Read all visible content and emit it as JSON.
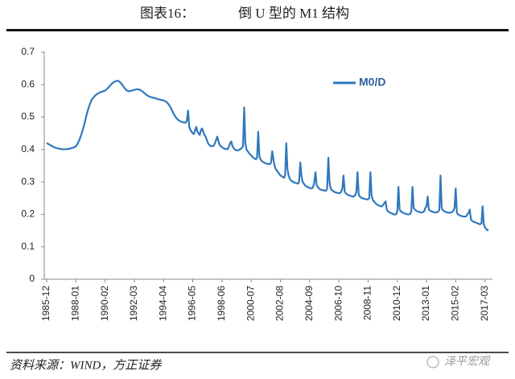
{
  "chart_data": {
    "type": "line",
    "figure_label": "图表16：",
    "title": "倒 U 型的 M1 结构",
    "source": "资料来源：WIND，方正证券",
    "watermark": "泽平宏观",
    "ylim": [
      0,
      0.7
    ],
    "yticks": [
      0,
      0.1,
      0.2,
      0.3,
      0.4,
      0.5,
      0.6,
      0.7
    ],
    "grid": false,
    "legend": "top-right",
    "categories": [
      "1985-12",
      null,
      null,
      null,
      null,
      null,
      null,
      null,
      null,
      null,
      null,
      null,
      null,
      null,
      null,
      null,
      null,
      null,
      null,
      null,
      null,
      null,
      null,
      null,
      null,
      "1988-01",
      null,
      null,
      null,
      null,
      null,
      null,
      null,
      null,
      null,
      null,
      null,
      null,
      null,
      null,
      null,
      null,
      null,
      null,
      null,
      null,
      null,
      null,
      null,
      null,
      "1990-02",
      null,
      null,
      null,
      null,
      null,
      null,
      null,
      null,
      null,
      null,
      null,
      null,
      null,
      null,
      null,
      null,
      null,
      null,
      null,
      null,
      null,
      null,
      null,
      null,
      "1992-03",
      null,
      null,
      null,
      null,
      null,
      null,
      null,
      null,
      null,
      null,
      null,
      null,
      null,
      null,
      null,
      null,
      null,
      null,
      null,
      null,
      null,
      null,
      null,
      null,
      "1994-04",
      null,
      null,
      null,
      null,
      null,
      null,
      null,
      null,
      null,
      null,
      null,
      null,
      null,
      null,
      null,
      null,
      null,
      null,
      null,
      null,
      null,
      null,
      null,
      null,
      "1996-05",
      null,
      null,
      null,
      null,
      null,
      null,
      null,
      null,
      null,
      null,
      null,
      null,
      null,
      null,
      null,
      null,
      null,
      null,
      null,
      null,
      null,
      null,
      null,
      null,
      "1998-06",
      null,
      null,
      null,
      null,
      null,
      null,
      null,
      null,
      null,
      null,
      null,
      null,
      null,
      null,
      null,
      null,
      null,
      null,
      null,
      null,
      null,
      null,
      null,
      null,
      "2000-07",
      null,
      null,
      null,
      null,
      null,
      null,
      null,
      null,
      null,
      null,
      null,
      null,
      null,
      null,
      null,
      null,
      null,
      null,
      null,
      null,
      null,
      null,
      null,
      null,
      "2002-08",
      null,
      null,
      null,
      null,
      null,
      null,
      null,
      null,
      null,
      null,
      null,
      null,
      null,
      null,
      null,
      null,
      null,
      null,
      null,
      null,
      null,
      null,
      null,
      null,
      "2004-09",
      null,
      null,
      null,
      null,
      null,
      null,
      null,
      null,
      null,
      null,
      null,
      null,
      null,
      null,
      null,
      null,
      null,
      null,
      null,
      null,
      null,
      null,
      null,
      null,
      "2006-10",
      null,
      null,
      null,
      null,
      null,
      null,
      null,
      null,
      null,
      null,
      null,
      null,
      null,
      null,
      null,
      null,
      null,
      null,
      null,
      null,
      null,
      null,
      null,
      null,
      "2008-11",
      null,
      null,
      null,
      null,
      null,
      null,
      null,
      null,
      null,
      null,
      null,
      null,
      null,
      null,
      null,
      null,
      null,
      null,
      null,
      null,
      null,
      null,
      null,
      null,
      "2010-12",
      null,
      null,
      null,
      null,
      null,
      null,
      null,
      null,
      null,
      null,
      null,
      null,
      null,
      null,
      null,
      null,
      null,
      null,
      null,
      null,
      null,
      null,
      null,
      null,
      "2013-01",
      null,
      null,
      null,
      null,
      null,
      null,
      null,
      null,
      null,
      null,
      null,
      null,
      null,
      null,
      null,
      null,
      null,
      null,
      null,
      null,
      null,
      null,
      null,
      null,
      "2015-02",
      null,
      null,
      null,
      null,
      null,
      null,
      null,
      null,
      null,
      null,
      null,
      null,
      null,
      null,
      null,
      null,
      null,
      null,
      null,
      null,
      null,
      null,
      null,
      null,
      "2017-03",
      null,
      null,
      null
    ],
    "series": [
      {
        "name": "M0/D",
        "color": "#2f78bd",
        "values": [
          0.42,
          0.418,
          0.416,
          0.414,
          0.412,
          0.41,
          0.408,
          0.406,
          0.405,
          0.404,
          0.403,
          0.402,
          0.402,
          0.401,
          0.401,
          0.401,
          0.401,
          0.401,
          0.402,
          0.402,
          0.403,
          0.404,
          0.405,
          0.406,
          0.408,
          0.41,
          0.415,
          0.422,
          0.43,
          0.44,
          0.45,
          0.462,
          0.475,
          0.49,
          0.505,
          0.518,
          0.53,
          0.54,
          0.55,
          0.556,
          0.56,
          0.565,
          0.568,
          0.571,
          0.573,
          0.575,
          0.577,
          0.578,
          0.58,
          0.58,
          0.582,
          0.585,
          0.588,
          0.592,
          0.596,
          0.6,
          0.604,
          0.607,
          0.609,
          0.611,
          0.612,
          0.612,
          0.61,
          0.607,
          0.603,
          0.598,
          0.593,
          0.588,
          0.584,
          0.581,
          0.58,
          0.58,
          0.581,
          0.582,
          0.583,
          0.584,
          0.585,
          0.586,
          0.586,
          0.585,
          0.584,
          0.582,
          0.579,
          0.576,
          0.573,
          0.57,
          0.567,
          0.565,
          0.563,
          0.562,
          0.561,
          0.56,
          0.559,
          0.558,
          0.557,
          0.556,
          0.555,
          0.554,
          0.553,
          0.552,
          0.551,
          0.55,
          0.548,
          0.545,
          0.541,
          0.536,
          0.53,
          0.523,
          0.515,
          0.508,
          0.502,
          0.497,
          0.493,
          0.49,
          0.488,
          0.486,
          0.485,
          0.484,
          0.483,
          0.483,
          0.49,
          0.52,
          0.47,
          0.46,
          0.455,
          0.45,
          0.448,
          0.46,
          0.47,
          0.455,
          0.45,
          0.445,
          0.46,
          0.465,
          0.455,
          0.445,
          0.44,
          0.43,
          0.42,
          0.415,
          0.412,
          0.41,
          0.41,
          0.412,
          0.42,
          0.43,
          0.44,
          0.425,
          0.415,
          0.41,
          0.408,
          0.405,
          0.403,
          0.402,
          0.401,
          0.402,
          0.41,
          0.42,
          0.425,
          0.41,
          0.405,
          0.4,
          0.398,
          0.397,
          0.398,
          0.4,
          0.402,
          0.405,
          0.41,
          0.53,
          0.42,
          0.4,
          0.395,
          0.39,
          0.385,
          0.382,
          0.378,
          0.375,
          0.372,
          0.37,
          0.375,
          0.455,
          0.38,
          0.37,
          0.365,
          0.362,
          0.36,
          0.358,
          0.357,
          0.356,
          0.355,
          0.355,
          0.36,
          0.395,
          0.37,
          0.35,
          0.34,
          0.335,
          0.33,
          0.325,
          0.32,
          0.318,
          0.315,
          0.313,
          0.32,
          0.42,
          0.34,
          0.32,
          0.31,
          0.305,
          0.302,
          0.3,
          0.298,
          0.297,
          0.296,
          0.295,
          0.3,
          0.36,
          0.32,
          0.3,
          0.295,
          0.29,
          0.287,
          0.285,
          0.283,
          0.282,
          0.28,
          0.28,
          0.285,
          0.3,
          0.33,
          0.29,
          0.285,
          0.28,
          0.277,
          0.276,
          0.275,
          0.274,
          0.273,
          0.273,
          0.28,
          0.375,
          0.3,
          0.28,
          0.275,
          0.272,
          0.27,
          0.268,
          0.267,
          0.266,
          0.265,
          0.266,
          0.27,
          0.28,
          0.32,
          0.27,
          0.265,
          0.262,
          0.26,
          0.258,
          0.257,
          0.256,
          0.255,
          0.256,
          0.26,
          0.27,
          0.33,
          0.26,
          0.255,
          0.252,
          0.25,
          0.249,
          0.248,
          0.247,
          0.246,
          0.247,
          0.25,
          0.33,
          0.26,
          0.245,
          0.24,
          0.236,
          0.232,
          0.23,
          0.228,
          0.226,
          0.225,
          0.225,
          0.23,
          0.235,
          0.24,
          0.215,
          0.21,
          0.207,
          0.205,
          0.203,
          0.202,
          0.2,
          0.2,
          0.2,
          0.21,
          0.285,
          0.215,
          0.21,
          0.207,
          0.205,
          0.203,
          0.202,
          0.201,
          0.2,
          0.2,
          0.201,
          0.21,
          0.285,
          0.22,
          0.215,
          0.212,
          0.21,
          0.208,
          0.207,
          0.206,
          0.206,
          0.207,
          0.21,
          0.22,
          0.225,
          0.255,
          0.215,
          0.212,
          0.21,
          0.208,
          0.207,
          0.206,
          0.206,
          0.207,
          0.208,
          0.215,
          0.32,
          0.22,
          0.213,
          0.21,
          0.208,
          0.207,
          0.206,
          0.205,
          0.205,
          0.206,
          0.207,
          0.212,
          0.22,
          0.28,
          0.205,
          0.2,
          0.198,
          0.196,
          0.195,
          0.194,
          0.193,
          0.193,
          0.194,
          0.2,
          0.205,
          0.215,
          0.185,
          0.18,
          0.178,
          0.176,
          0.175,
          0.174,
          0.172,
          0.17,
          0.17,
          0.172,
          0.225,
          0.17,
          0.16,
          0.155,
          0.152,
          0.15
        ]
      }
    ]
  }
}
